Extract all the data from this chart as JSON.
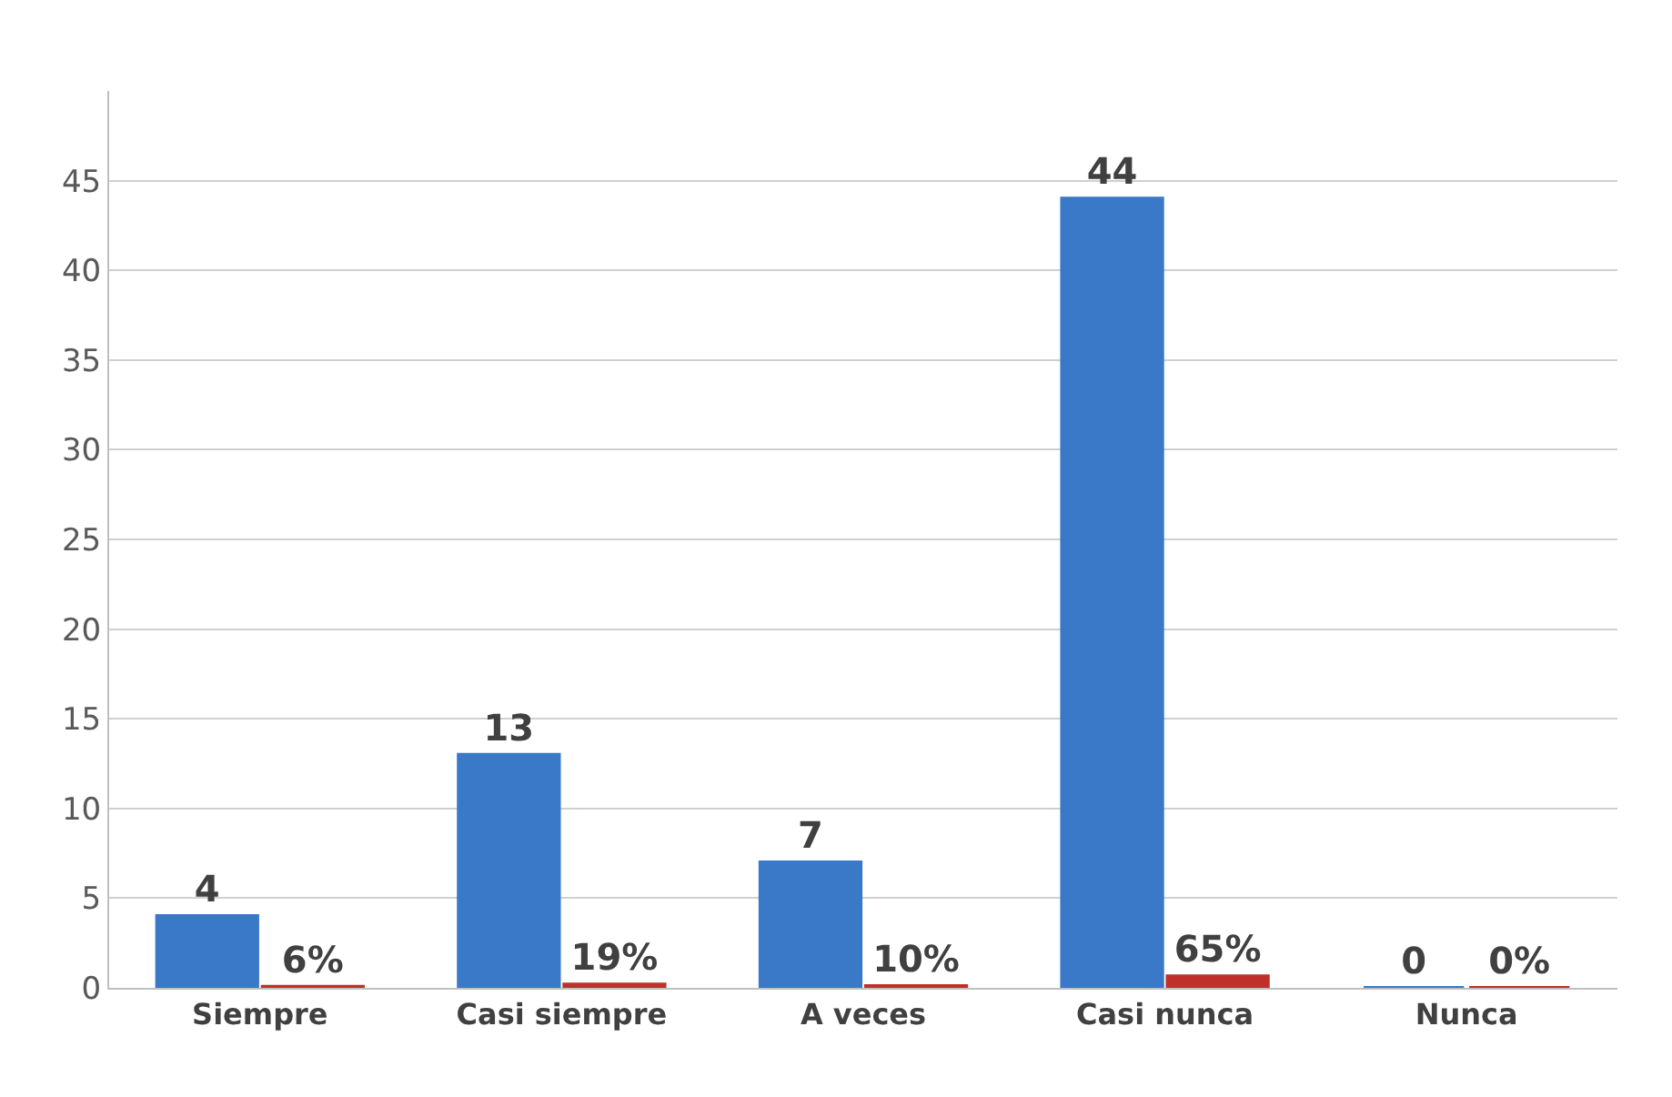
{
  "chart_data": {
    "type": "bar",
    "categories": [
      "Siempre",
      "Casi siempre",
      "A veces",
      "Casi nunca",
      "Nunca"
    ],
    "series": [
      {
        "color": "#3a78c8",
        "values": [
          4,
          13,
          7,
          44,
          0
        ],
        "value_labels": [
          "4",
          "13",
          "7",
          "44",
          "0"
        ]
      },
      {
        "color": "#c0302a",
        "values": [
          0.06,
          0.19,
          0.1,
          0.65,
          0
        ],
        "value_labels": [
          "6%",
          "19%",
          "10%",
          "65%",
          "0%"
        ]
      }
    ],
    "ylim": [
      0,
      50
    ],
    "yticks": [
      0,
      5,
      10,
      15,
      20,
      25,
      30,
      35,
      40,
      45
    ],
    "grid": "y",
    "legend": false
  }
}
